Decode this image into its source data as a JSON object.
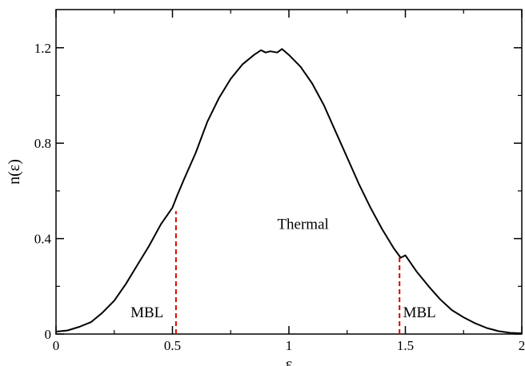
{
  "chart_data": {
    "type": "line",
    "title": "",
    "xlabel": "ε",
    "ylabel": "n(ε)",
    "xlim": [
      0,
      2
    ],
    "ylim": [
      0,
      1.36
    ],
    "grid": false,
    "legend": "none",
    "x_ticks": [
      0,
      0.5,
      1,
      1.5,
      2
    ],
    "x_tick_labels": [
      "0",
      "0.5",
      "1",
      "1.5",
      "2"
    ],
    "y_ticks": [
      0,
      0.4,
      0.8,
      1.2
    ],
    "y_tick_labels": [
      "0",
      "0.4",
      "0.8",
      "1.2"
    ],
    "series": [
      {
        "color": "#000000",
        "x": [
          0,
          0.05,
          0.1,
          0.15,
          0.2,
          0.25,
          0.3,
          0.35,
          0.4,
          0.45,
          0.5,
          0.52,
          0.55,
          0.6,
          0.65,
          0.7,
          0.75,
          0.8,
          0.85,
          0.88,
          0.9,
          0.92,
          0.95,
          0.97,
          1.0,
          1.05,
          1.1,
          1.15,
          1.2,
          1.25,
          1.3,
          1.35,
          1.4,
          1.45,
          1.48,
          1.5,
          1.55,
          1.6,
          1.65,
          1.7,
          1.75,
          1.8,
          1.85,
          1.9,
          1.95,
          2.0
        ],
        "y": [
          0.01,
          0.015,
          0.03,
          0.05,
          0.09,
          0.14,
          0.21,
          0.29,
          0.37,
          0.46,
          0.53,
          0.58,
          0.65,
          0.76,
          0.89,
          0.99,
          1.07,
          1.13,
          1.17,
          1.19,
          1.18,
          1.185,
          1.18,
          1.195,
          1.17,
          1.12,
          1.05,
          0.96,
          0.85,
          0.74,
          0.63,
          0.53,
          0.44,
          0.36,
          0.32,
          0.33,
          0.26,
          0.2,
          0.145,
          0.1,
          0.07,
          0.045,
          0.025,
          0.012,
          0.005,
          0.003
        ]
      }
    ],
    "markers": [
      {
        "x": 0.515,
        "y_from": 0,
        "y_to": 0.515,
        "style": "dashed",
        "color": "#dd0000"
      },
      {
        "x": 1.475,
        "y_from": 0,
        "y_to": 0.33,
        "style": "dashed",
        "color": "#dd0000"
      }
    ],
    "annotations": [
      {
        "text": "Thermal",
        "x": 0.95,
        "y": 0.44
      },
      {
        "text": "MBL",
        "x": 0.32,
        "y": 0.07
      },
      {
        "text": "MBL",
        "x": 1.49,
        "y": 0.07
      }
    ]
  }
}
